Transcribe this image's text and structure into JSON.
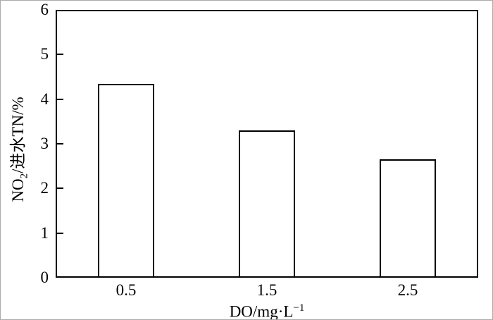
{
  "figure": {
    "background": "#ffffff",
    "line_color": "#000000"
  },
  "chart_data": {
    "type": "bar",
    "categories": [
      "0.5",
      "1.5",
      "2.5"
    ],
    "values": [
      4.35,
      3.3,
      2.65
    ],
    "title": "",
    "xlabel": "DO/mg·L−1",
    "ylabel": "NO2/进水TN/%",
    "ylim": [
      0,
      6
    ],
    "yticks": [
      "0",
      "1",
      "2",
      "3",
      "4",
      "5",
      "6"
    ],
    "grid": false,
    "legend": null,
    "bar_fill": "#ffffff",
    "bar_border": "#000000"
  },
  "y_axis": {
    "title_pre": "NO",
    "title_sub": "2",
    "title_post": "/进水TN/%"
  },
  "x_axis": {
    "title_pre": "DO/mg·L",
    "title_sup": "−1"
  }
}
